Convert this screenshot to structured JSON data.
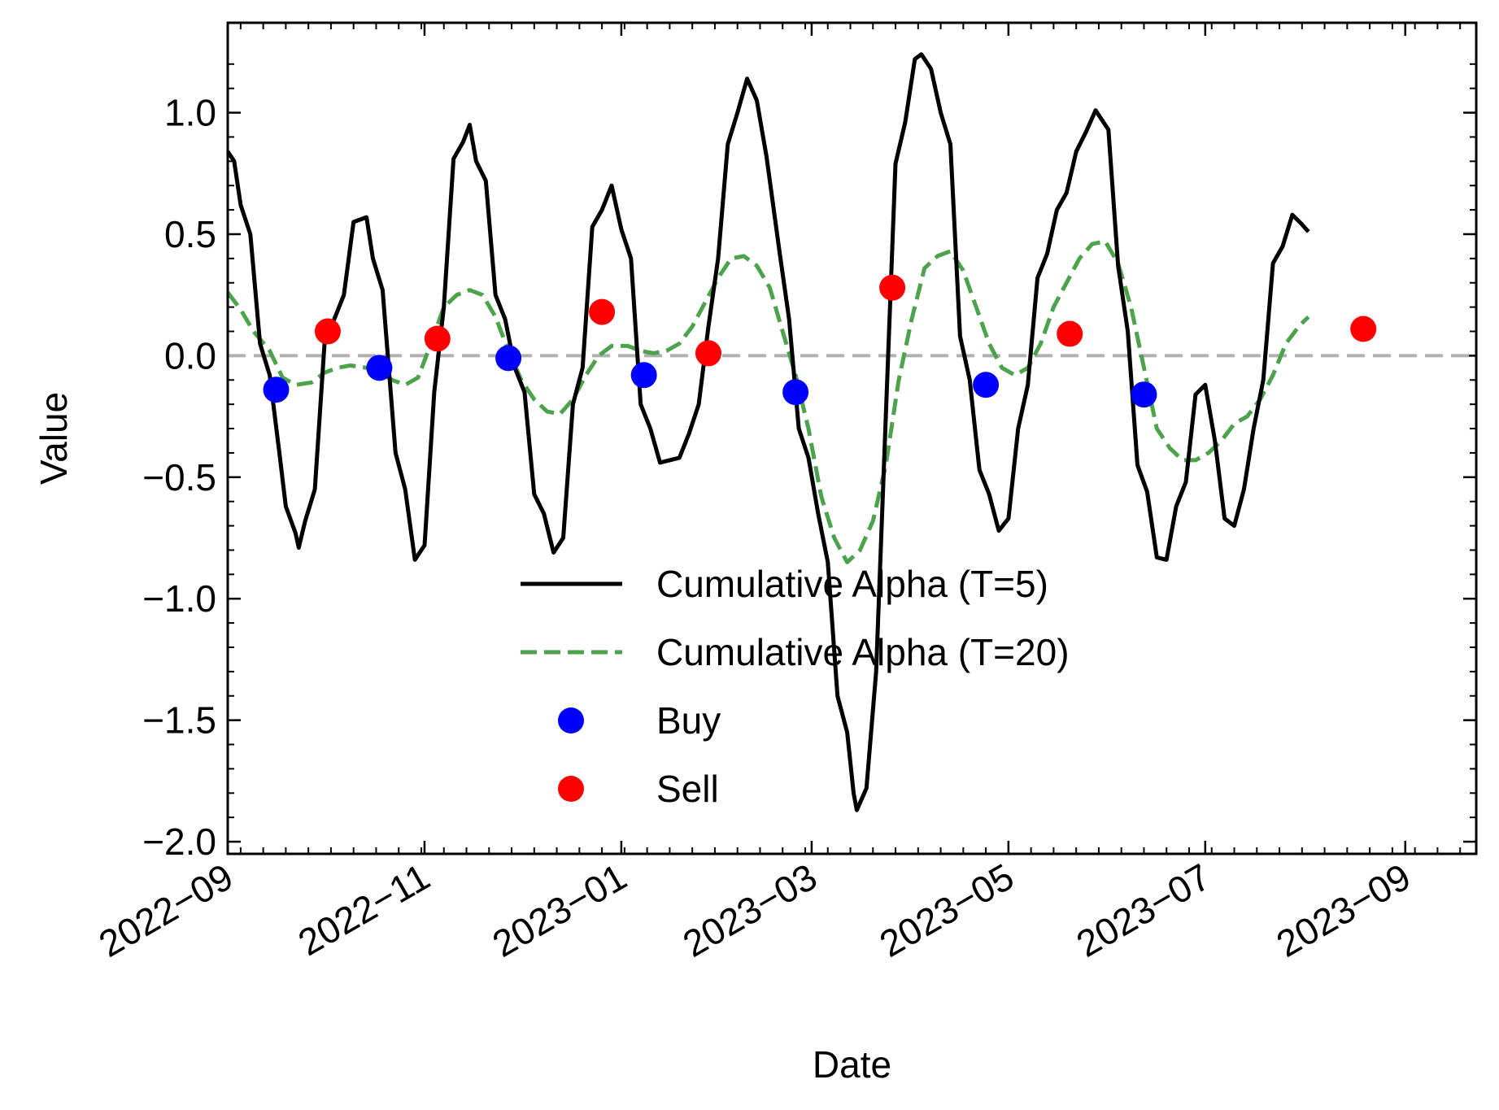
{
  "chart_data": {
    "type": "line",
    "xlabel": "Date",
    "ylabel": "Value",
    "xlim": [
      "2022-09-01",
      "2023-09-23"
    ],
    "ylim": [
      -2.05,
      1.37
    ],
    "x_ticks": [
      {
        "date": "2022-09-01",
        "label": "2022−09"
      },
      {
        "date": "2022-11-01",
        "label": "2022−11"
      },
      {
        "date": "2023-01-01",
        "label": "2023−01"
      },
      {
        "date": "2023-03-01",
        "label": "2023−03"
      },
      {
        "date": "2023-05-01",
        "label": "2023−05"
      },
      {
        "date": "2023-07-01",
        "label": "2023−07"
      },
      {
        "date": "2023-09-01",
        "label": "2023−09"
      }
    ],
    "y_ticks": [
      {
        "value": 1.0,
        "label": "1.0"
      },
      {
        "value": 0.5,
        "label": "0.5"
      },
      {
        "value": 0.0,
        "label": "0.0"
      },
      {
        "value": -0.5,
        "label": "−0.5"
      },
      {
        "value": -1.0,
        "label": "−1.0"
      },
      {
        "value": -1.5,
        "label": "−1.5"
      },
      {
        "value": -2.0,
        "label": "−2.0"
      }
    ],
    "reference_line": {
      "y": 0,
      "style": "dashed",
      "color": "#b0b0b0"
    },
    "legend": {
      "position": "lower-center"
    },
    "colors": {
      "alpha5": "#000000",
      "alpha20": "#4ca34c",
      "buy": "#0000ff",
      "sell": "#ff0000"
    },
    "series": [
      {
        "name": "Cumulative Alpha (T=5)",
        "style": "solid",
        "points": [
          [
            "2022-09-01",
            0.84
          ],
          [
            "2022-09-03",
            0.8
          ],
          [
            "2022-09-05",
            0.62
          ],
          [
            "2022-09-08",
            0.5
          ],
          [
            "2022-09-11",
            0.05
          ],
          [
            "2022-09-14",
            -0.08
          ],
          [
            "2022-09-17",
            -0.4
          ],
          [
            "2022-09-19",
            -0.62
          ],
          [
            "2022-09-22",
            -0.73
          ],
          [
            "2022-09-23",
            -0.79
          ],
          [
            "2022-09-25",
            -0.68
          ],
          [
            "2022-09-28",
            -0.55
          ],
          [
            "2022-10-01",
            0.05
          ],
          [
            "2022-10-04",
            0.15
          ],
          [
            "2022-10-07",
            0.25
          ],
          [
            "2022-10-10",
            0.55
          ],
          [
            "2022-10-14",
            0.57
          ],
          [
            "2022-10-16",
            0.4
          ],
          [
            "2022-10-19",
            0.27
          ],
          [
            "2022-10-23",
            -0.4
          ],
          [
            "2022-10-26",
            -0.55
          ],
          [
            "2022-10-29",
            -0.84
          ],
          [
            "2022-11-01",
            -0.78
          ],
          [
            "2022-11-04",
            -0.15
          ],
          [
            "2022-11-07",
            0.2
          ],
          [
            "2022-11-10",
            0.81
          ],
          [
            "2022-11-13",
            0.88
          ],
          [
            "2022-11-15",
            0.95
          ],
          [
            "2022-11-17",
            0.8
          ],
          [
            "2022-11-20",
            0.72
          ],
          [
            "2022-11-23",
            0.25
          ],
          [
            "2022-11-26",
            0.15
          ],
          [
            "2022-11-29",
            -0.05
          ],
          [
            "2022-12-02",
            -0.15
          ],
          [
            "2022-12-05",
            -0.57
          ],
          [
            "2022-12-08",
            -0.65
          ],
          [
            "2022-12-11",
            -0.81
          ],
          [
            "2022-12-14",
            -0.75
          ],
          [
            "2022-12-17",
            -0.2
          ],
          [
            "2022-12-20",
            -0.05
          ],
          [
            "2022-12-23",
            0.53
          ],
          [
            "2022-12-26",
            0.6
          ],
          [
            "2022-12-29",
            0.7
          ],
          [
            "2023-01-01",
            0.52
          ],
          [
            "2023-01-04",
            0.4
          ],
          [
            "2023-01-07",
            -0.2
          ],
          [
            "2023-01-10",
            -0.3
          ],
          [
            "2023-01-13",
            -0.44
          ],
          [
            "2023-01-19",
            -0.42
          ],
          [
            "2023-01-22",
            -0.32
          ],
          [
            "2023-01-25",
            -0.2
          ],
          [
            "2023-01-28",
            0.12
          ],
          [
            "2023-01-31",
            0.4
          ],
          [
            "2023-02-03",
            0.87
          ],
          [
            "2023-02-06",
            1.0
          ],
          [
            "2023-02-09",
            1.14
          ],
          [
            "2023-02-12",
            1.05
          ],
          [
            "2023-02-15",
            0.82
          ],
          [
            "2023-02-19",
            0.43
          ],
          [
            "2023-02-22",
            0.15
          ],
          [
            "2023-02-25",
            -0.3
          ],
          [
            "2023-02-28",
            -0.42
          ],
          [
            "2023-03-03",
            -0.65
          ],
          [
            "2023-03-06",
            -0.85
          ],
          [
            "2023-03-09",
            -1.4
          ],
          [
            "2023-03-12",
            -1.55
          ],
          [
            "2023-03-14",
            -1.8
          ],
          [
            "2023-03-15",
            -1.87
          ],
          [
            "2023-03-18",
            -1.78
          ],
          [
            "2023-03-21",
            -1.3
          ],
          [
            "2023-03-24",
            -0.25
          ],
          [
            "2023-03-27",
            0.79
          ],
          [
            "2023-03-30",
            0.96
          ],
          [
            "2023-04-02",
            1.22
          ],
          [
            "2023-04-04",
            1.24
          ],
          [
            "2023-04-07",
            1.18
          ],
          [
            "2023-04-10",
            1.0
          ],
          [
            "2023-04-13",
            0.87
          ],
          [
            "2023-04-16",
            0.08
          ],
          [
            "2023-04-19",
            -0.1
          ],
          [
            "2023-04-22",
            -0.47
          ],
          [
            "2023-04-25",
            -0.57
          ],
          [
            "2023-04-28",
            -0.72
          ],
          [
            "2023-05-01",
            -0.67
          ],
          [
            "2023-05-04",
            -0.3
          ],
          [
            "2023-05-07",
            -0.12
          ],
          [
            "2023-05-10",
            0.32
          ],
          [
            "2023-05-13",
            0.42
          ],
          [
            "2023-05-16",
            0.6
          ],
          [
            "2023-05-19",
            0.67
          ],
          [
            "2023-05-22",
            0.84
          ],
          [
            "2023-05-25",
            0.92
          ],
          [
            "2023-05-28",
            1.01
          ],
          [
            "2023-06-01",
            0.93
          ],
          [
            "2023-06-04",
            0.37
          ],
          [
            "2023-06-07",
            0.1
          ],
          [
            "2023-06-10",
            -0.45
          ],
          [
            "2023-06-13",
            -0.56
          ],
          [
            "2023-06-16",
            -0.83
          ],
          [
            "2023-06-19",
            -0.84
          ],
          [
            "2023-06-22",
            -0.62
          ],
          [
            "2023-06-25",
            -0.52
          ],
          [
            "2023-06-28",
            -0.16
          ],
          [
            "2023-07-01",
            -0.12
          ],
          [
            "2023-07-04",
            -0.35
          ],
          [
            "2023-07-07",
            -0.67
          ],
          [
            "2023-07-10",
            -0.7
          ],
          [
            "2023-07-13",
            -0.55
          ],
          [
            "2023-07-16",
            -0.3
          ],
          [
            "2023-07-19",
            -0.1
          ],
          [
            "2023-07-22",
            0.38
          ],
          [
            "2023-07-25",
            0.45
          ],
          [
            "2023-07-28",
            0.58
          ],
          [
            "2023-07-31",
            0.54
          ],
          [
            "2023-08-02",
            0.51
          ]
        ]
      },
      {
        "name": "Cumulative Alpha (T=20)",
        "style": "dashed",
        "points": [
          [
            "2022-09-01",
            0.26
          ],
          [
            "2022-09-05",
            0.19
          ],
          [
            "2022-09-09",
            0.1
          ],
          [
            "2022-09-14",
            0.02
          ],
          [
            "2022-09-18",
            -0.09
          ],
          [
            "2022-09-22",
            -0.12
          ],
          [
            "2022-09-27",
            -0.11
          ],
          [
            "2022-10-01",
            -0.07
          ],
          [
            "2022-10-05",
            -0.05
          ],
          [
            "2022-10-09",
            -0.04
          ],
          [
            "2022-10-14",
            -0.05
          ],
          [
            "2022-10-18",
            -0.07
          ],
          [
            "2022-10-22",
            -0.1
          ],
          [
            "2022-10-26",
            -0.12
          ],
          [
            "2022-10-30",
            -0.09
          ],
          [
            "2022-11-03",
            0.05
          ],
          [
            "2022-11-07",
            0.2
          ],
          [
            "2022-11-11",
            0.25
          ],
          [
            "2022-11-15",
            0.27
          ],
          [
            "2022-11-19",
            0.25
          ],
          [
            "2022-11-23",
            0.16
          ],
          [
            "2022-11-27",
            0.02
          ],
          [
            "2022-12-01",
            -0.1
          ],
          [
            "2022-12-05",
            -0.18
          ],
          [
            "2022-12-09",
            -0.23
          ],
          [
            "2022-12-13",
            -0.24
          ],
          [
            "2022-12-17",
            -0.18
          ],
          [
            "2022-12-21",
            -0.08
          ],
          [
            "2022-12-25",
            0.0
          ],
          [
            "2022-12-29",
            0.04
          ],
          [
            "2023-01-03",
            0.04
          ],
          [
            "2023-01-07",
            0.02
          ],
          [
            "2023-01-11",
            0.01
          ],
          [
            "2023-01-15",
            0.02
          ],
          [
            "2023-01-19",
            0.05
          ],
          [
            "2023-01-23",
            0.12
          ],
          [
            "2023-01-27",
            0.22
          ],
          [
            "2023-01-31",
            0.32
          ],
          [
            "2023-02-04",
            0.4
          ],
          [
            "2023-02-08",
            0.41
          ],
          [
            "2023-02-12",
            0.37
          ],
          [
            "2023-02-16",
            0.28
          ],
          [
            "2023-02-20",
            0.1
          ],
          [
            "2023-02-24",
            -0.08
          ],
          [
            "2023-02-28",
            -0.3
          ],
          [
            "2023-03-04",
            -0.58
          ],
          [
            "2023-03-08",
            -0.75
          ],
          [
            "2023-03-12",
            -0.85
          ],
          [
            "2023-03-16",
            -0.8
          ],
          [
            "2023-03-20",
            -0.68
          ],
          [
            "2023-03-24",
            -0.45
          ],
          [
            "2023-03-28",
            -0.1
          ],
          [
            "2023-04-01",
            0.15
          ],
          [
            "2023-04-05",
            0.36
          ],
          [
            "2023-04-09",
            0.41
          ],
          [
            "2023-04-13",
            0.43
          ],
          [
            "2023-04-17",
            0.35
          ],
          [
            "2023-04-21",
            0.2
          ],
          [
            "2023-04-25",
            0.05
          ],
          [
            "2023-04-29",
            -0.05
          ],
          [
            "2023-05-03",
            -0.08
          ],
          [
            "2023-05-07",
            -0.05
          ],
          [
            "2023-05-11",
            0.05
          ],
          [
            "2023-05-15",
            0.2
          ],
          [
            "2023-05-19",
            0.3
          ],
          [
            "2023-05-23",
            0.4
          ],
          [
            "2023-05-27",
            0.46
          ],
          [
            "2023-05-31",
            0.47
          ],
          [
            "2023-06-04",
            0.38
          ],
          [
            "2023-06-08",
            0.2
          ],
          [
            "2023-06-12",
            -0.05
          ],
          [
            "2023-06-16",
            -0.3
          ],
          [
            "2023-06-20",
            -0.38
          ],
          [
            "2023-06-24",
            -0.43
          ],
          [
            "2023-06-28",
            -0.43
          ],
          [
            "2023-07-02",
            -0.4
          ],
          [
            "2023-07-06",
            -0.35
          ],
          [
            "2023-07-10",
            -0.28
          ],
          [
            "2023-07-14",
            -0.25
          ],
          [
            "2023-07-18",
            -0.18
          ],
          [
            "2023-07-22",
            -0.08
          ],
          [
            "2023-07-26",
            0.05
          ],
          [
            "2023-07-30",
            0.12
          ],
          [
            "2023-08-02",
            0.16
          ]
        ]
      },
      {
        "name": "Buy",
        "style": "marker",
        "points": [
          [
            "2022-09-16",
            -0.14
          ],
          [
            "2022-10-18",
            -0.05
          ],
          [
            "2022-11-27",
            -0.01
          ],
          [
            "2023-01-08",
            -0.08
          ],
          [
            "2023-02-24",
            -0.15
          ],
          [
            "2023-04-24",
            -0.12
          ],
          [
            "2023-06-12",
            -0.16
          ]
        ]
      },
      {
        "name": "Sell",
        "style": "marker",
        "points": [
          [
            "2022-10-02",
            0.1
          ],
          [
            "2022-11-05",
            0.07
          ],
          [
            "2022-12-26",
            0.18
          ],
          [
            "2023-01-28",
            0.01
          ],
          [
            "2023-03-26",
            0.28
          ],
          [
            "2023-05-20",
            0.09
          ],
          [
            "2023-08-19",
            0.11
          ]
        ]
      }
    ]
  }
}
